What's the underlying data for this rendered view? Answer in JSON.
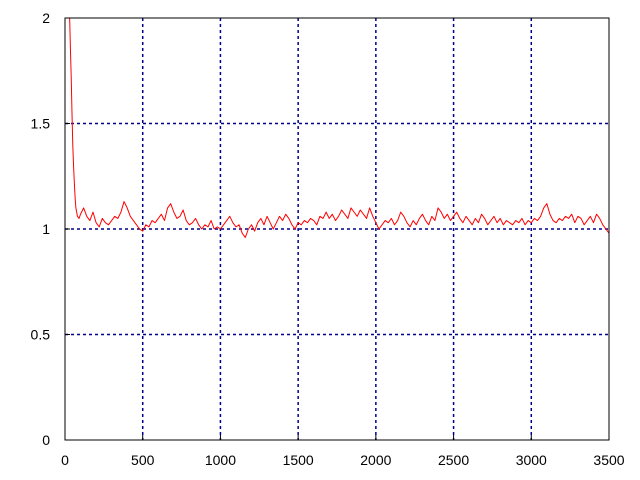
{
  "chart_data": {
    "type": "line",
    "title": "",
    "xlabel": "",
    "ylabel": "",
    "xlim": [
      0,
      3500
    ],
    "ylim": [
      0,
      2
    ],
    "xticks": [
      0,
      500,
      1000,
      1500,
      2000,
      2500,
      3000,
      3500
    ],
    "yticks": [
      0,
      0.5,
      1,
      1.5,
      2
    ],
    "x_tick_labels": [
      "0",
      "500",
      "1000",
      "1500",
      "2000",
      "2500",
      "3000",
      "3500"
    ],
    "y_tick_labels": [
      "0",
      "0.5",
      "1",
      "1.5",
      "2"
    ],
    "grid": true,
    "legend": "none",
    "colors": {
      "line": "#ff0000",
      "grid": "#00008b",
      "axes": "#000000"
    },
    "series": [
      {
        "x": [
          30,
          35,
          40,
          45,
          50,
          55,
          60,
          65,
          70,
          75,
          80,
          90,
          100,
          120,
          140,
          160,
          180,
          200,
          220,
          240,
          260,
          280,
          300,
          320,
          340,
          360,
          380,
          400,
          420,
          440,
          460,
          480,
          500,
          520,
          540,
          560,
          580,
          600,
          620,
          640,
          660,
          680,
          700,
          720,
          740,
          760,
          780,
          800,
          820,
          840,
          860,
          880,
          900,
          920,
          940,
          960,
          980,
          1000,
          1020,
          1040,
          1060,
          1080,
          1100,
          1120,
          1140,
          1160,
          1180,
          1200,
          1220,
          1240,
          1260,
          1280,
          1300,
          1320,
          1340,
          1360,
          1380,
          1400,
          1420,
          1440,
          1460,
          1480,
          1500,
          1520,
          1540,
          1560,
          1580,
          1600,
          1620,
          1640,
          1660,
          1680,
          1700,
          1720,
          1740,
          1760,
          1780,
          1800,
          1820,
          1840,
          1860,
          1880,
          1900,
          1920,
          1940,
          1960,
          1980,
          2000,
          2020,
          2040,
          2060,
          2080,
          2100,
          2120,
          2140,
          2160,
          2180,
          2200,
          2220,
          2240,
          2260,
          2280,
          2300,
          2320,
          2340,
          2360,
          2380,
          2400,
          2420,
          2440,
          2460,
          2480,
          2500,
          2520,
          2540,
          2560,
          2580,
          2600,
          2620,
          2640,
          2660,
          2680,
          2700,
          2720,
          2740,
          2760,
          2780,
          2800,
          2820,
          2840,
          2860,
          2880,
          2900,
          2920,
          2940,
          2960,
          2980,
          3000,
          3020,
          3040,
          3060,
          3080,
          3100,
          3120,
          3140,
          3160,
          3180,
          3200,
          3220,
          3240,
          3260,
          3280,
          3300,
          3320,
          3340,
          3360,
          3380,
          3400,
          3420,
          3440,
          3460,
          3480,
          3500
        ],
        "y": [
          2.0,
          1.85,
          1.72,
          1.55,
          1.4,
          1.3,
          1.22,
          1.15,
          1.1,
          1.08,
          1.06,
          1.05,
          1.07,
          1.1,
          1.06,
          1.04,
          1.08,
          1.03,
          1.01,
          1.05,
          1.03,
          1.02,
          1.04,
          1.06,
          1.05,
          1.08,
          1.13,
          1.1,
          1.06,
          1.04,
          1.02,
          1.0,
          0.99,
          1.02,
          1.01,
          1.04,
          1.03,
          1.05,
          1.07,
          1.04,
          1.1,
          1.12,
          1.08,
          1.05,
          1.06,
          1.09,
          1.04,
          1.02,
          1.03,
          1.05,
          1.02,
          1.0,
          1.02,
          1.01,
          1.04,
          1.0,
          1.01,
          1.0,
          1.02,
          1.04,
          1.06,
          1.03,
          1.01,
          1.02,
          0.98,
          0.96,
          1.0,
          1.02,
          0.99,
          1.03,
          1.05,
          1.02,
          1.06,
          1.03,
          1.0,
          1.03,
          1.06,
          1.04,
          1.07,
          1.05,
          1.02,
          1.0,
          1.03,
          1.02,
          1.04,
          1.03,
          1.05,
          1.04,
          1.02,
          1.06,
          1.05,
          1.08,
          1.05,
          1.07,
          1.04,
          1.06,
          1.09,
          1.07,
          1.05,
          1.1,
          1.08,
          1.06,
          1.09,
          1.07,
          1.05,
          1.1,
          1.06,
          1.03,
          1.0,
          1.02,
          1.04,
          1.03,
          1.05,
          1.02,
          1.04,
          1.08,
          1.06,
          1.03,
          1.01,
          1.04,
          1.02,
          1.05,
          1.07,
          1.04,
          1.02,
          1.06,
          1.04,
          1.1,
          1.08,
          1.05,
          1.07,
          1.04,
          1.06,
          1.08,
          1.05,
          1.03,
          1.06,
          1.04,
          1.02,
          1.05,
          1.03,
          1.07,
          1.05,
          1.02,
          1.04,
          1.06,
          1.03,
          1.05,
          1.02,
          1.04,
          1.03,
          1.02,
          1.04,
          1.03,
          1.05,
          1.02,
          1.04,
          1.03,
          1.05,
          1.04,
          1.06,
          1.1,
          1.12,
          1.07,
          1.04,
          1.03,
          1.05,
          1.04,
          1.06,
          1.05,
          1.07,
          1.03,
          1.06,
          1.05,
          1.02,
          1.04,
          1.06,
          1.03,
          1.07,
          1.05,
          1.02,
          1.0,
          0.98
        ]
      }
    ]
  }
}
